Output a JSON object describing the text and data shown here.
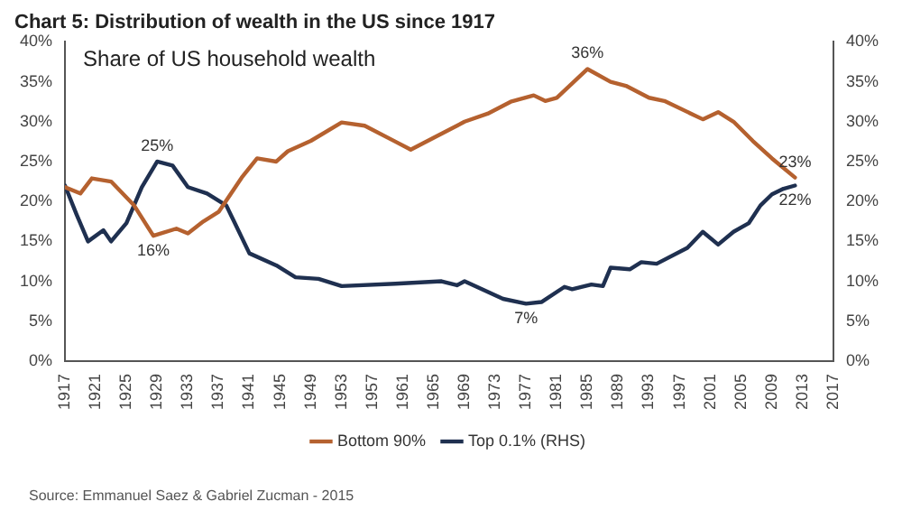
{
  "chart_data": {
    "type": "line",
    "title": "Chart 5: Distribution of wealth in the US since 1917",
    "subtitle": "Share of US household wealth",
    "series": [
      {
        "name": "Bottom 90%",
        "color": "#b5612f",
        "x": [
          1917,
          1919,
          1920.5,
          1923,
          1926,
          1928.5,
          1931.5,
          1933,
          1935,
          1937,
          1940,
          1942,
          1944.5,
          1946,
          1949,
          1953,
          1956,
          1960,
          1962,
          1965,
          1969,
          1972,
          1975,
          1978,
          1979.5,
          1981,
          1985,
          1988,
          1990,
          1993,
          1995,
          2000,
          2002,
          2004,
          2006.5,
          2009,
          2012
        ],
        "values": [
          21.8,
          21,
          22.9,
          22.5,
          19.5,
          15.7,
          16.6,
          16,
          17.5,
          18.7,
          23,
          25.4,
          25,
          26.3,
          27.6,
          29.9,
          29.5,
          27.5,
          26.5,
          28,
          30,
          31,
          32.5,
          33.3,
          32.6,
          33,
          36.6,
          35,
          34.5,
          33,
          32.6,
          30.3,
          31.2,
          30,
          27.6,
          25.4,
          23
        ]
      },
      {
        "name": "Top 0.1% (RHS)",
        "color": "#1f3050",
        "axis": "y2",
        "x": [
          1917,
          1918.5,
          1920,
          1922,
          1923,
          1925,
          1927,
          1929,
          1931,
          1933,
          1935.5,
          1938,
          1939,
          1941,
          1944.5,
          1947,
          1950,
          1953,
          1960,
          1966,
          1968,
          1969,
          1974,
          1977,
          1979,
          1982,
          1983,
          1985.5,
          1987,
          1988,
          1990.5,
          1992,
          1994,
          1998,
          2000,
          2002,
          2004,
          2006,
          2007.5,
          2009,
          2010.5,
          2012
        ],
        "values": [
          22,
          18.4,
          15,
          16.4,
          15,
          17.3,
          21.8,
          25,
          24.5,
          21.8,
          21,
          19.5,
          17.5,
          13.5,
          12,
          10.5,
          10.3,
          9.4,
          9.7,
          10,
          9.5,
          10,
          7.8,
          7.2,
          7.4,
          9.3,
          9,
          9.6,
          9.4,
          11.7,
          11.5,
          12.4,
          12.2,
          14.2,
          16.2,
          14.6,
          16.2,
          17.3,
          19.5,
          20.9,
          21.6,
          22
        ]
      }
    ],
    "xlim": [
      1917,
      2017
    ],
    "xticks": [
      1917,
      1921,
      1925,
      1929,
      1933,
      1937,
      1941,
      1945,
      1949,
      1953,
      1957,
      1961,
      1965,
      1969,
      1973,
      1977,
      1981,
      1985,
      1989,
      1993,
      1997,
      2001,
      2005,
      2009,
      2013,
      2017
    ],
    "ylim": [
      0,
      40
    ],
    "yticks": [
      {
        "value": 0,
        "label": "0%"
      },
      {
        "value": 5,
        "label": "5%"
      },
      {
        "value": 10,
        "label": "10%"
      },
      {
        "value": 15,
        "label": "15%"
      },
      {
        "value": 20,
        "label": "20%"
      },
      {
        "value": 25,
        "label": "25%"
      },
      {
        "value": 30,
        "label": "30%"
      },
      {
        "value": 35,
        "label": "35%"
      },
      {
        "value": 40,
        "label": "40%"
      }
    ],
    "y2lim": [
      0,
      40
    ],
    "y2ticks": [
      {
        "value": 0,
        "label": "0%"
      },
      {
        "value": 5,
        "label": "5%"
      },
      {
        "value": 10,
        "label": "10%"
      },
      {
        "value": 15,
        "label": "15%"
      },
      {
        "value": 20,
        "label": "20%"
      },
      {
        "value": 25,
        "label": "25%"
      },
      {
        "value": 30,
        "label": "30%"
      },
      {
        "value": 35,
        "label": "35%"
      },
      {
        "value": 40,
        "label": "40%"
      }
    ],
    "annotations": [
      {
        "text": "36%",
        "x": 1985,
        "y": 36.6
      },
      {
        "text": "25%",
        "x": 1929,
        "y": 25
      },
      {
        "text": "16%",
        "x": 1928.5,
        "y": 15.7
      },
      {
        "text": "7%",
        "x": 1977,
        "y": 7.2
      },
      {
        "text": "23%",
        "x": 2012,
        "y": 23
      },
      {
        "text": "22%",
        "x": 2012,
        "y": 22
      },
      "Source: Emmanuel Saez & Gabriel Zucman - 2015"
    ],
    "legend": "bottom",
    "grid": false,
    "marker": "none",
    "line_style": "solid"
  }
}
